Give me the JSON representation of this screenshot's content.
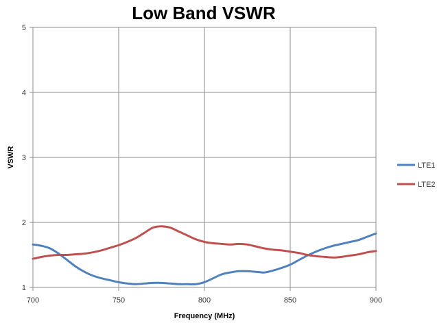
{
  "chart_data": {
    "type": "line",
    "title": "Low Band VSWR",
    "xlabel": "Frequency (MHz)",
    "ylabel": "VSWR",
    "xlim": [
      700,
      900
    ],
    "ylim": [
      1,
      5
    ],
    "x_ticks": [
      700,
      750,
      800,
      850,
      900
    ],
    "y_ticks": [
      1,
      2,
      3,
      4,
      5
    ],
    "grid": true,
    "legend_position": "right",
    "series": [
      {
        "name": "LTE1",
        "color": "#4f81bd",
        "x": [
          700,
          705,
          710,
          715,
          720,
          725,
          730,
          735,
          740,
          745,
          750,
          755,
          760,
          765,
          770,
          775,
          780,
          785,
          790,
          795,
          800,
          805,
          810,
          815,
          820,
          825,
          830,
          835,
          840,
          845,
          850,
          855,
          860,
          865,
          870,
          875,
          880,
          885,
          890,
          895,
          900
        ],
        "y": [
          1.66,
          1.64,
          1.6,
          1.52,
          1.42,
          1.32,
          1.24,
          1.18,
          1.14,
          1.11,
          1.08,
          1.06,
          1.05,
          1.06,
          1.07,
          1.07,
          1.06,
          1.05,
          1.05,
          1.05,
          1.08,
          1.14,
          1.2,
          1.23,
          1.25,
          1.25,
          1.24,
          1.23,
          1.26,
          1.3,
          1.35,
          1.42,
          1.49,
          1.55,
          1.6,
          1.64,
          1.67,
          1.7,
          1.73,
          1.78,
          1.83
        ]
      },
      {
        "name": "LTE2",
        "color": "#c0504d",
        "x": [
          700,
          705,
          710,
          715,
          720,
          725,
          730,
          735,
          740,
          745,
          750,
          755,
          760,
          765,
          770,
          775,
          780,
          785,
          790,
          795,
          800,
          805,
          810,
          815,
          820,
          825,
          830,
          835,
          840,
          845,
          850,
          855,
          860,
          865,
          870,
          875,
          880,
          885,
          890,
          895,
          900
        ],
        "y": [
          1.44,
          1.47,
          1.49,
          1.5,
          1.5,
          1.51,
          1.52,
          1.54,
          1.57,
          1.61,
          1.65,
          1.7,
          1.76,
          1.84,
          1.92,
          1.94,
          1.92,
          1.86,
          1.8,
          1.74,
          1.7,
          1.68,
          1.67,
          1.66,
          1.67,
          1.66,
          1.63,
          1.6,
          1.58,
          1.57,
          1.55,
          1.53,
          1.5,
          1.48,
          1.47,
          1.46,
          1.47,
          1.49,
          1.51,
          1.54,
          1.56
        ]
      }
    ]
  }
}
